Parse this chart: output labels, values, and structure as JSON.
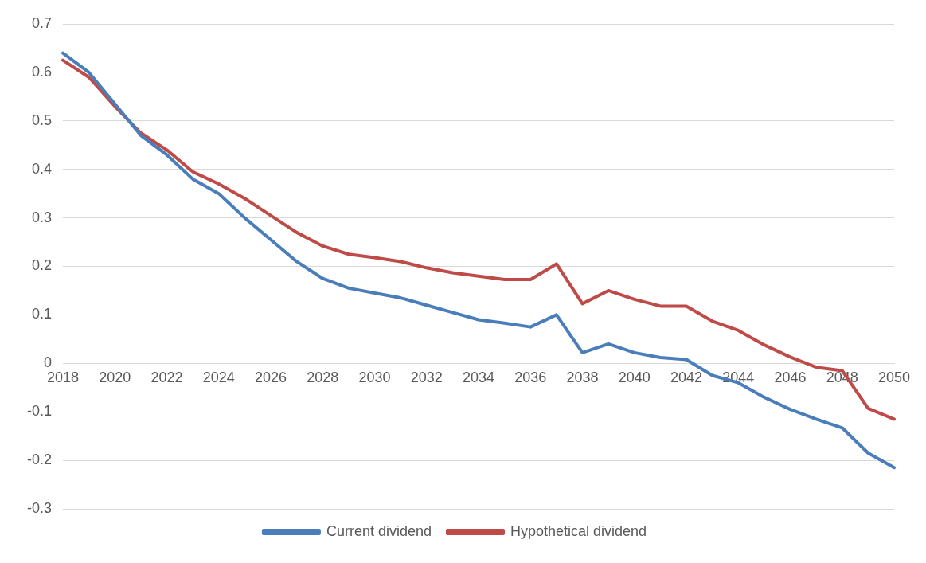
{
  "chart_data": {
    "type": "line",
    "categories": [
      "2018",
      null,
      "2020",
      null,
      "2022",
      null,
      "2024",
      null,
      "2026",
      null,
      "2028",
      null,
      "2030",
      null,
      "2032",
      null,
      "2034",
      null,
      "2036",
      null,
      "2038",
      null,
      "2040",
      null,
      "2042",
      null,
      "2044",
      null,
      "2046",
      null,
      "2048",
      null,
      "2050"
    ],
    "series": [
      {
        "name": "Current dividend",
        "color": "#4a7ebb",
        "values": [
          0.64,
          0.6,
          0.535,
          0.47,
          0.43,
          0.38,
          0.35,
          0.3,
          0.255,
          0.21,
          0.175,
          0.155,
          0.145,
          0.135,
          0.12,
          0.105,
          0.09,
          0.083,
          0.075,
          0.1,
          0.022,
          0.04,
          0.022,
          0.012,
          0.008,
          -0.025,
          -0.04,
          -0.07,
          -0.095,
          -0.115,
          -0.133,
          -0.185,
          -0.215
        ]
      },
      {
        "name": "Hypothetical dividend",
        "color": "#be4b48",
        "values": [
          0.625,
          0.59,
          0.53,
          0.475,
          0.44,
          0.395,
          0.37,
          0.34,
          0.305,
          0.27,
          0.242,
          0.225,
          0.218,
          0.21,
          0.197,
          0.187,
          0.18,
          0.173,
          0.173,
          0.205,
          0.123,
          0.15,
          0.132,
          0.118,
          0.118,
          0.087,
          0.068,
          0.038,
          0.013,
          -0.008,
          -0.015,
          -0.093,
          -0.115
        ]
      }
    ],
    "ylim": [
      -0.3,
      0.7
    ],
    "yticks": [
      -0.3,
      -0.2,
      -0.1,
      0,
      0.1,
      0.2,
      0.3,
      0.4,
      0.5,
      0.6,
      0.7
    ],
    "grid": "y",
    "legend": "bottom",
    "marker": "none",
    "line_style": "solid"
  }
}
